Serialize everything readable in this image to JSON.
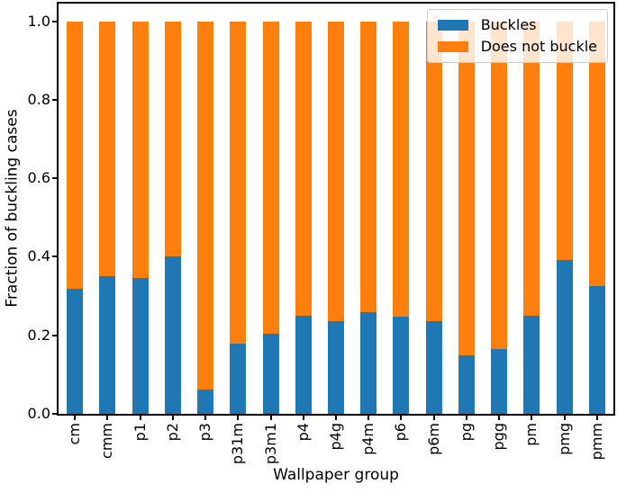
{
  "figure": {
    "background": "#ffffff",
    "text_color": "#000000",
    "spine_color": "#000000"
  },
  "chart_data": {
    "type": "bar",
    "stacked": true,
    "orientation": "vertical",
    "title": "",
    "xlabel": "Wallpaper group",
    "ylabel": "Fraction of buckling cases",
    "categories": [
      "cm",
      "cmm",
      "p1",
      "p2",
      "p3",
      "p31m",
      "p3m1",
      "p4",
      "p4g",
      "p4m",
      "p6",
      "p6m",
      "pg",
      "pgg",
      "pm",
      "pmg",
      "pmm"
    ],
    "series": [
      {
        "name": "Buckles",
        "color": "#1f77b4",
        "values": [
          0.318,
          0.351,
          0.346,
          0.4,
          0.062,
          0.178,
          0.205,
          0.249,
          0.236,
          0.259,
          0.247,
          0.236,
          0.148,
          0.164,
          0.25,
          0.392,
          0.326
        ]
      },
      {
        "name": "Does not buckle",
        "color": "#ff7f0e",
        "values": [
          0.682,
          0.649,
          0.654,
          0.6,
          0.938,
          0.822,
          0.795,
          0.751,
          0.764,
          0.741,
          0.753,
          0.764,
          0.852,
          0.836,
          0.75,
          0.608,
          0.674
        ]
      }
    ],
    "ylim": [
      0,
      1.045
    ],
    "yticks": [
      0.0,
      0.2,
      0.4,
      0.6,
      0.8,
      1.0
    ],
    "ytick_labels": [
      "0.0",
      "0.2",
      "0.4",
      "0.6",
      "0.8",
      "1.0"
    ],
    "xtick_rotation": 90,
    "bar_width_fraction": 0.5,
    "grid": false,
    "legend": {
      "position": "upper right",
      "entries": [
        "Buckles",
        "Does not buckle"
      ]
    }
  }
}
